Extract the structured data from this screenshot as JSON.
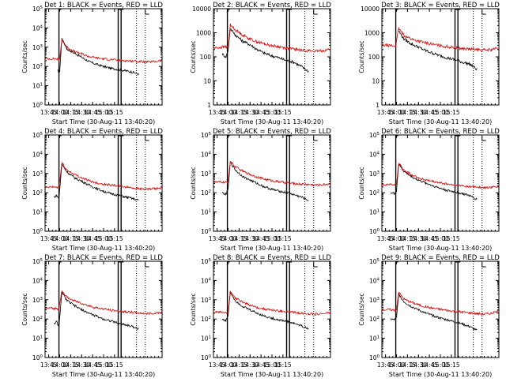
{
  "figure": {
    "layout": "3x3 grid of detector light curves"
  },
  "colors": {
    "events": "#000000",
    "lld": "#dd0000",
    "axes": "#000000",
    "background": "#ffffff"
  },
  "chart_data": [
    {
      "type": "line",
      "title": "Det 1: BLACK = Events, RED = LLD",
      "xlabel": "Start Time (30-Aug-11 13:40:20)",
      "ylabel": "Counts/sec",
      "xticks": [
        "13:45",
        "14:00",
        "14:15",
        "14:30",
        "14:45",
        "15:00",
        "15:15"
      ],
      "xlim_min": [
        40,
        200
      ],
      "ylim": [
        1,
        100000
      ],
      "ylog": true,
      "yticks": [
        "10^0",
        "10^1",
        "10^2",
        "10^3",
        "10^4",
        "10^5"
      ],
      "solid_lines_min": [
        59,
        140,
        144
      ],
      "dotted_lines_min": [
        165,
        177
      ],
      "series": [
        {
          "color": "events",
          "x_min": [
            40,
            52,
            57,
            60,
            63,
            70,
            80,
            90,
            100,
            110,
            120,
            130,
            140,
            150,
            160,
            168
          ],
          "y": [
            null,
            null,
            60,
            50,
            3000,
            800,
            500,
            300,
            180,
            130,
            100,
            80,
            70,
            60,
            50,
            40
          ]
        },
        {
          "color": "lld",
          "x_min": [
            40,
            52,
            57,
            60,
            63,
            70,
            80,
            90,
            100,
            110,
            120,
            130,
            140,
            150,
            160,
            170,
            180,
            190,
            200
          ],
          "y": [
            250,
            250,
            240,
            240,
            2500,
            1000,
            600,
            450,
            330,
            280,
            250,
            230,
            210,
            200,
            190,
            180,
            170,
            180,
            210
          ]
        }
      ]
    },
    {
      "type": "line",
      "title": "Det 2: BLACK = Events, RED = LLD",
      "xlabel": "Start Time (30-Aug-11 13:40:20)",
      "ylabel": "Counts/sec",
      "xticks": [
        "13:45",
        "14:00",
        "14:15",
        "14:30",
        "14:45",
        "15:00",
        "15:15"
      ],
      "xlim_min": [
        40,
        200
      ],
      "ylim": [
        1,
        10000
      ],
      "ylog": true,
      "yticks": [
        "1",
        "10",
        "100",
        "1000",
        "10000"
      ],
      "solid_lines_min": [
        59,
        140,
        144
      ],
      "dotted_lines_min": [
        165,
        177
      ],
      "series": [
        {
          "color": "events",
          "x_min": [
            52,
            57,
            60,
            63,
            70,
            80,
            90,
            100,
            110,
            120,
            130,
            140,
            150,
            160,
            170
          ],
          "y": [
            130,
            100,
            180,
            1500,
            800,
            450,
            320,
            200,
            140,
            110,
            90,
            70,
            60,
            40,
            25
          ]
        },
        {
          "color": "lld",
          "x_min": [
            40,
            50,
            57,
            60,
            63,
            70,
            80,
            90,
            100,
            110,
            120,
            130,
            140,
            150,
            160,
            170,
            180,
            190,
            200
          ],
          "y": [
            230,
            250,
            260,
            240,
            2200,
            1300,
            800,
            550,
            420,
            340,
            290,
            260,
            230,
            210,
            190,
            180,
            170,
            180,
            210
          ]
        }
      ]
    },
    {
      "type": "line",
      "title": "Det 3: BLACK = Events, RED = LLD",
      "xlabel": "Start Time (30-Aug-11 13:40:20)",
      "ylabel": "Counts/sec",
      "xticks": [
        "13:45",
        "14:00",
        "14:15",
        "14:30",
        "14:45",
        "15:00",
        "15:15"
      ],
      "xlim_min": [
        40,
        200
      ],
      "ylim": [
        1,
        10000
      ],
      "ylog": true,
      "yticks": [
        "1",
        "10",
        "100",
        "1000",
        "10000"
      ],
      "solid_lines_min": [
        59,
        140,
        144
      ],
      "dotted_lines_min": [
        165,
        177
      ],
      "series": [
        {
          "color": "events",
          "x_min": [
            59,
            63,
            70,
            80,
            90,
            100,
            110,
            120,
            130,
            140,
            150,
            160,
            170
          ],
          "y": [
            null,
            1200,
            550,
            350,
            250,
            180,
            140,
            110,
            90,
            75,
            60,
            50,
            30
          ]
        },
        {
          "color": "lld",
          "x_min": [
            40,
            50,
            59,
            63,
            70,
            80,
            90,
            100,
            110,
            120,
            130,
            140,
            150,
            160,
            170,
            180,
            190,
            200
          ],
          "y": [
            300,
            300,
            280,
            1500,
            800,
            550,
            450,
            380,
            330,
            290,
            260,
            240,
            220,
            210,
            200,
            190,
            200,
            230
          ]
        }
      ]
    },
    {
      "type": "line",
      "title": "Det 4: BLACK = Events, RED = LLD",
      "xlabel": "Start Time (30-Aug-11 13:40:20)",
      "ylabel": "Counts/sec",
      "xticks": [
        "13:45",
        "14:00",
        "14:15",
        "14:30",
        "14:45",
        "15:00",
        "15:15"
      ],
      "xlim_min": [
        40,
        200
      ],
      "ylim": [
        1,
        100000
      ],
      "ylog": true,
      "yticks": [
        "10^0",
        "10^1",
        "10^2",
        "10^3",
        "10^4",
        "10^5"
      ],
      "solid_lines_min": [
        59,
        140,
        144
      ],
      "dotted_lines_min": [
        165,
        177
      ],
      "series": [
        {
          "color": "events",
          "x_min": [
            52,
            56,
            59,
            63,
            70,
            80,
            90,
            100,
            110,
            120,
            130,
            140,
            150,
            160,
            168
          ],
          "y": [
            60,
            70,
            50,
            3000,
            1200,
            600,
            400,
            250,
            170,
            120,
            90,
            75,
            60,
            50,
            40
          ]
        },
        {
          "color": "lld",
          "x_min": [
            40,
            50,
            59,
            63,
            70,
            80,
            90,
            100,
            110,
            120,
            130,
            140,
            150,
            160,
            170,
            180,
            190,
            200
          ],
          "y": [
            180,
            200,
            190,
            3500,
            1500,
            900,
            600,
            420,
            330,
            280,
            250,
            230,
            200,
            180,
            160,
            150,
            160,
            180
          ]
        }
      ]
    },
    {
      "type": "line",
      "title": "Det 5: BLACK = Events, RED = LLD",
      "xlabel": "Start Time (30-Aug-11 13:40:20)",
      "ylabel": "Counts/sec",
      "xticks": [
        "13:45",
        "14:00",
        "14:15",
        "14:30",
        "14:45",
        "15:00",
        "15:15"
      ],
      "xlim_min": [
        40,
        200
      ],
      "ylim": [
        1,
        100000
      ],
      "ylog": true,
      "yticks": [
        "10^0",
        "10^1",
        "10^2",
        "10^3",
        "10^4",
        "10^5"
      ],
      "solid_lines_min": [
        59,
        140,
        144
      ],
      "dotted_lines_min": [
        165,
        177
      ],
      "series": [
        {
          "color": "events",
          "x_min": [
            52,
            57,
            60,
            63,
            70,
            80,
            90,
            100,
            110,
            120,
            130,
            140,
            150,
            160,
            170
          ],
          "y": [
            100,
            80,
            150,
            4000,
            1500,
            700,
            450,
            300,
            200,
            150,
            120,
            100,
            80,
            60,
            40
          ]
        },
        {
          "color": "lld",
          "x_min": [
            40,
            50,
            57,
            60,
            63,
            70,
            80,
            90,
            100,
            110,
            120,
            130,
            140,
            150,
            160,
            170,
            180,
            190,
            200
          ],
          "y": [
            350,
            360,
            340,
            360,
            4500,
            2200,
            1300,
            900,
            650,
            500,
            420,
            370,
            330,
            300,
            280,
            270,
            250,
            260,
            300
          ]
        }
      ]
    },
    {
      "type": "line",
      "title": "Det 6: BLACK = Events, RED = LLD",
      "xlabel": "Start Time (30-Aug-11 13:40:20)",
      "ylabel": "Counts/sec",
      "xticks": [
        "13:45",
        "14:00",
        "14:15",
        "14:30",
        "14:45",
        "15:00",
        "15:15"
      ],
      "xlim_min": [
        40,
        200
      ],
      "ylim": [
        1,
        100000
      ],
      "ylog": true,
      "yticks": [
        "10^0",
        "10^1",
        "10^2",
        "10^3",
        "10^4",
        "10^5"
      ],
      "solid_lines_min": [
        59,
        140,
        144
      ],
      "dotted_lines_min": [
        165,
        177
      ],
      "series": [
        {
          "color": "events",
          "x_min": [
            52,
            57,
            60,
            63,
            70,
            80,
            90,
            100,
            110,
            120,
            130,
            140,
            150,
            160,
            170
          ],
          "y": [
            100,
            90,
            120,
            3000,
            1300,
            700,
            450,
            320,
            230,
            170,
            130,
            110,
            90,
            70,
            45
          ]
        },
        {
          "color": "lld",
          "x_min": [
            40,
            50,
            57,
            60,
            63,
            70,
            80,
            90,
            100,
            110,
            120,
            130,
            140,
            150,
            160,
            170,
            180,
            190,
            200
          ],
          "y": [
            260,
            270,
            250,
            270,
            3500,
            1500,
            900,
            600,
            450,
            380,
            320,
            280,
            250,
            230,
            210,
            200,
            180,
            190,
            220
          ]
        }
      ]
    },
    {
      "type": "line",
      "title": "Det 7: BLACK = Events, RED = LLD",
      "xlabel": "Start Time (30-Aug-11 13:40:20)",
      "ylabel": "Counts/sec",
      "xticks": [
        "13:45",
        "14:00",
        "14:15",
        "14:30",
        "14:45",
        "15:00",
        "15:15"
      ],
      "xlim_min": [
        40,
        200
      ],
      "ylim": [
        1,
        100000
      ],
      "ylog": true,
      "yticks": [
        "10^0",
        "10^1",
        "10^2",
        "10^3",
        "10^4",
        "10^5"
      ],
      "solid_lines_min": [
        59,
        140,
        144
      ],
      "dotted_lines_min": [
        165,
        177
      ],
      "series": [
        {
          "color": "events",
          "x_min": [
            52,
            56,
            59,
            63,
            70,
            80,
            90,
            100,
            110,
            120,
            130,
            140,
            150,
            160,
            168
          ],
          "y": [
            60,
            70,
            40,
            2500,
            900,
            500,
            300,
            200,
            140,
            100,
            80,
            60,
            50,
            40,
            30
          ]
        },
        {
          "color": "lld",
          "x_min": [
            40,
            50,
            59,
            63,
            70,
            80,
            90,
            100,
            110,
            120,
            130,
            140,
            150,
            160,
            170,
            180,
            190,
            200
          ],
          "y": [
            350,
            360,
            340,
            3000,
            1300,
            900,
            650,
            480,
            380,
            330,
            290,
            260,
            240,
            220,
            200,
            190,
            200,
            230
          ]
        }
      ]
    },
    {
      "type": "line",
      "title": "Det 8: BLACK = Events, RED = LLD",
      "xlabel": "Start Time (30-Aug-11 13:40:20)",
      "ylabel": "Counts/sec",
      "xticks": [
        "13:45",
        "14:00",
        "14:15",
        "14:30",
        "14:45",
        "15:00",
        "15:15"
      ],
      "xlim_min": [
        40,
        200
      ],
      "ylim": [
        1,
        100000
      ],
      "ylog": true,
      "yticks": [
        "10^0",
        "10^1",
        "10^2",
        "10^3",
        "10^4",
        "10^5"
      ],
      "solid_lines_min": [
        59,
        140,
        144
      ],
      "dotted_lines_min": [
        165,
        177
      ],
      "series": [
        {
          "color": "events",
          "x_min": [
            52,
            57,
            60,
            63,
            70,
            80,
            90,
            100,
            110,
            120,
            130,
            140,
            150,
            160,
            170
          ],
          "y": [
            100,
            80,
            150,
            2500,
            900,
            450,
            300,
            200,
            140,
            110,
            90,
            75,
            60,
            45,
            30
          ]
        },
        {
          "color": "lld",
          "x_min": [
            40,
            50,
            57,
            60,
            63,
            70,
            80,
            90,
            100,
            110,
            120,
            130,
            140,
            150,
            160,
            170,
            180,
            190,
            200
          ],
          "y": [
            220,
            230,
            210,
            230,
            2800,
            1200,
            750,
            520,
            400,
            330,
            290,
            260,
            240,
            220,
            200,
            190,
            180,
            190,
            220
          ]
        }
      ]
    },
    {
      "type": "line",
      "title": "Det 9: BLACK = Events, RED = LLD",
      "xlabel": "Start Time (30-Aug-11 13:40:20)",
      "ylabel": "Counts/sec",
      "xticks": [
        "13:45",
        "14:00",
        "14:15",
        "14:30",
        "14:45",
        "15:00",
        "15:15"
      ],
      "xlim_min": [
        40,
        200
      ],
      "ylim": [
        1,
        100000
      ],
      "ylog": true,
      "yticks": [
        "10^0",
        "10^1",
        "10^2",
        "10^3",
        "10^4",
        "10^5"
      ],
      "solid_lines_min": [
        59,
        140,
        144
      ],
      "dotted_lines_min": [
        165,
        177
      ],
      "series": [
        {
          "color": "events",
          "x_min": [
            52,
            57,
            60,
            63,
            70,
            80,
            90,
            100,
            110,
            120,
            130,
            140,
            150,
            160,
            170
          ],
          "y": [
            100,
            90,
            120,
            2000,
            800,
            450,
            300,
            200,
            150,
            110,
            90,
            70,
            55,
            40,
            25
          ]
        },
        {
          "color": "lld",
          "x_min": [
            40,
            50,
            57,
            60,
            63,
            70,
            80,
            90,
            100,
            110,
            120,
            130,
            140,
            150,
            160,
            170,
            180,
            190,
            200
          ],
          "y": [
            300,
            310,
            290,
            310,
            2500,
            1100,
            750,
            550,
            430,
            360,
            320,
            280,
            250,
            230,
            210,
            190,
            180,
            200,
            250
          ]
        }
      ]
    }
  ]
}
